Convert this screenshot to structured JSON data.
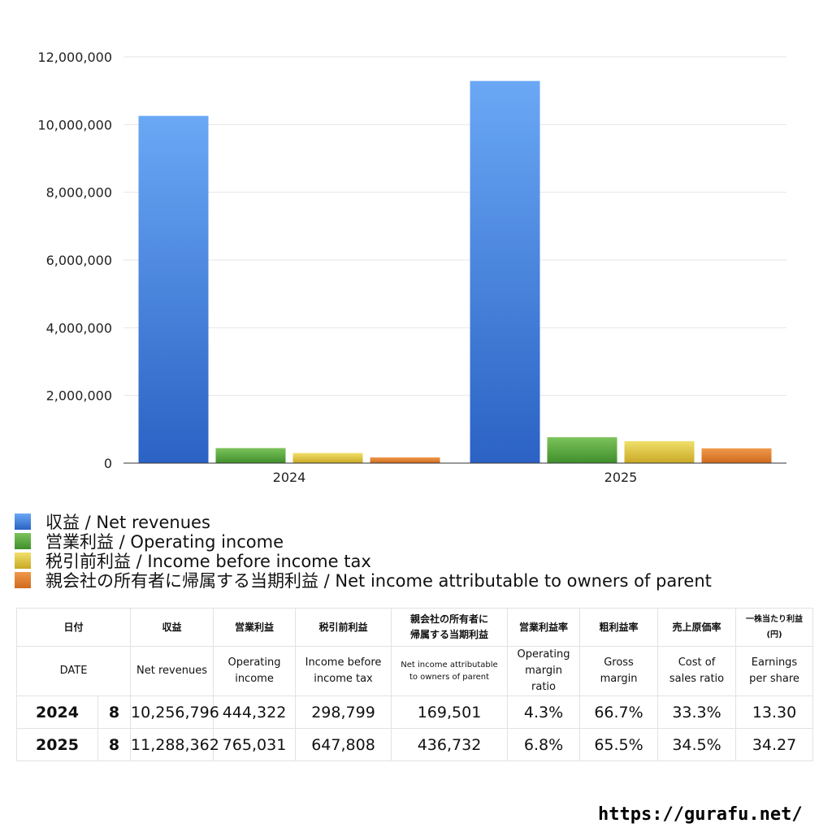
{
  "chart_data": {
    "type": "bar",
    "categories": [
      "2024",
      "2025"
    ],
    "series": [
      {
        "name": "収益 / Net revenues",
        "values": [
          10256796,
          11288362
        ]
      },
      {
        "name": "営業利益 / Operating income",
        "values": [
          444322,
          765031
        ]
      },
      {
        "name": "税引前利益 / Income before income tax",
        "values": [
          298799,
          647808
        ]
      },
      {
        "name": "親会社の所有者に帰属する当期利益 / Net income attributable to owners of parent",
        "values": [
          169501,
          436732
        ]
      }
    ],
    "ylim": [
      0,
      12000000
    ],
    "yticks": [
      "0",
      "2,000,000",
      "4,000,000",
      "6,000,000",
      "8,000,000",
      "10,000,000",
      "12,000,000"
    ],
    "grid": true,
    "legend_position": "bottom-left",
    "title": "",
    "xlabel": "",
    "ylabel": ""
  },
  "colors": {
    "series": [
      {
        "top": "#6aa8f5",
        "bottom": "#2b62c4"
      },
      {
        "top": "#7cc35b",
        "bottom": "#3f8f2c"
      },
      {
        "top": "#f0e06a",
        "bottom": "#c9a825"
      },
      {
        "top": "#f0994a",
        "bottom": "#cf6a1e"
      }
    ]
  },
  "table": {
    "headers_jp": [
      "日付",
      "収益",
      "営業利益",
      "税引前利益",
      "親会社の所有者に\n帰属する当期利益",
      "営業利益率",
      "粗利益率",
      "売上原価率",
      "一株当たり利益\n(円)"
    ],
    "headers_en": [
      "DATE",
      "Net revenues",
      "Operating\nincome",
      "Income before\nincome tax",
      "Net income attributable\nto owners of parent",
      "Operating\nmargin\nratio",
      "Gross\nmargin",
      "Cost of\nsales ratio",
      "Earnings\nper share"
    ],
    "rows": [
      {
        "year": "2024",
        "month": "8",
        "revenues": "10,256,796",
        "operating_income": "444,322",
        "income_before_tax": "298,799",
        "net_income": "169,501",
        "op_margin": "4.3%",
        "gross_margin": "66.7%",
        "cost_ratio": "33.3%",
        "eps": "13.30"
      },
      {
        "year": "2025",
        "month": "8",
        "revenues": "11,288,362",
        "operating_income": "765,031",
        "income_before_tax": "647,808",
        "net_income": "436,732",
        "op_margin": "6.8%",
        "gross_margin": "65.5%",
        "cost_ratio": "34.5%",
        "eps": "34.27"
      }
    ]
  },
  "watermark": "https://gurafu.net/"
}
